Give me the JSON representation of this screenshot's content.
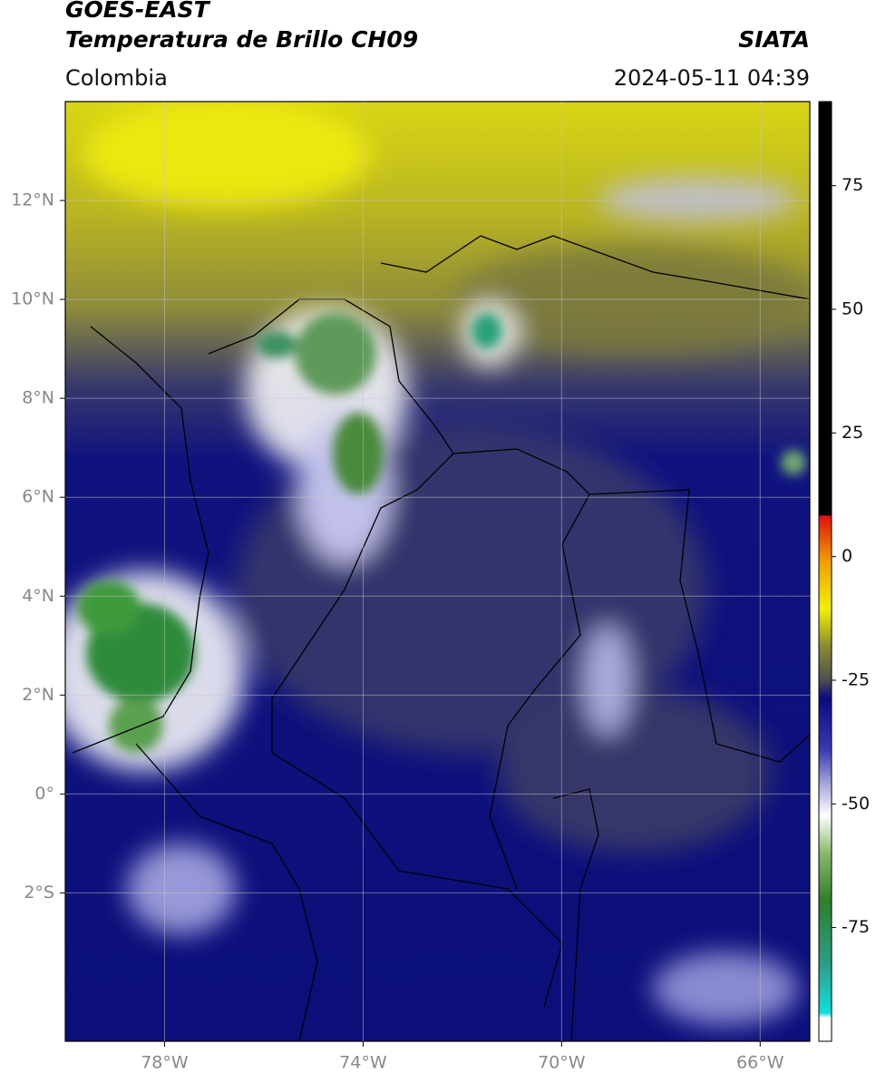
{
  "header": {
    "title": "GOES-EAST",
    "subtitle": "Temperatura de Brillo CH09",
    "source": "SIATA",
    "region": "Colombia",
    "datetime": "2024-05-11 04:39"
  },
  "map": {
    "xlim": [
      -80,
      -65
    ],
    "ylim": [
      -5,
      14
    ],
    "grid": true,
    "xticks": [
      {
        "value": -78,
        "label": "78°W"
      },
      {
        "value": -74,
        "label": "74°W"
      },
      {
        "value": -70,
        "label": "70°W"
      },
      {
        "value": -66,
        "label": "66°W"
      }
    ],
    "yticks": [
      {
        "value": 12,
        "label": "12°N"
      },
      {
        "value": 10,
        "label": "10°N"
      },
      {
        "value": 8,
        "label": "8°N"
      },
      {
        "value": 6,
        "label": "6°N"
      },
      {
        "value": 4,
        "label": "4°N"
      },
      {
        "value": 2,
        "label": "2°N"
      },
      {
        "value": 0,
        "label": "0°"
      },
      {
        "value": -2,
        "label": "2°S"
      }
    ]
  },
  "colorbar": {
    "lim": [
      -98,
      92
    ],
    "ticks": [
      75,
      50,
      25,
      0,
      -25,
      -50,
      -75
    ]
  }
}
